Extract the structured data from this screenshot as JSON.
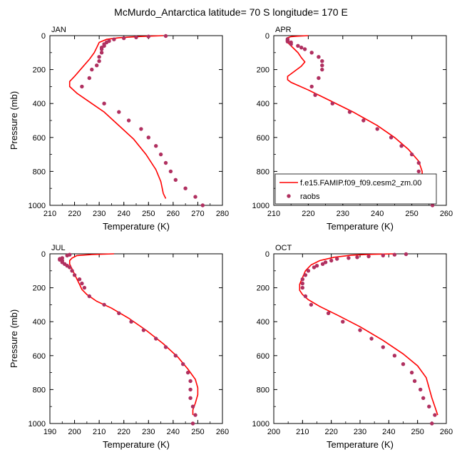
{
  "figure": {
    "title": "McMurdo_Antarctica  latitude= 70 S longitude= 170 E"
  },
  "legend": {
    "model_label": "f.e15.FAMIP.f09_f09.cesm2_zm.00",
    "obs_label": "raobs",
    "model_color": "#ff0000",
    "obs_color": "#b03060"
  },
  "chart_data": [
    {
      "type": "line",
      "panel": "JAN",
      "xlabel": "Temperature (K)",
      "ylabel": "Pressure (mb)",
      "xlim": [
        210,
        280
      ],
      "ylim": [
        1000,
        0
      ],
      "xticks": [
        210,
        220,
        230,
        240,
        250,
        260,
        270,
        280
      ],
      "yticks": [
        0,
        200,
        400,
        600,
        800,
        1000
      ],
      "series": [
        {
          "name": "f.e15.FAMIP.f09_f09.cesm2_zm.00",
          "kind": "line",
          "points": [
            [
              256,
              0
            ],
            [
              245,
              6
            ],
            [
              238,
              12
            ],
            [
              233,
              22
            ],
            [
              230,
              40
            ],
            [
              229,
              70
            ],
            [
              228,
              100
            ],
            [
              226,
              140
            ],
            [
              223,
              190
            ],
            [
              220,
              240
            ],
            [
              218,
              270
            ],
            [
              218,
              300
            ],
            [
              221,
              340
            ],
            [
              226,
              390
            ],
            [
              232,
              450
            ],
            [
              238,
              530
            ],
            [
              244,
              610
            ],
            [
              249,
              700
            ],
            [
              253,
              790
            ],
            [
              255,
              860
            ],
            [
              256,
              930
            ],
            [
              257,
              960
            ]
          ]
        },
        {
          "name": "raobs",
          "kind": "scatter",
          "points": [
            [
              257,
              2
            ],
            [
              250,
              5
            ],
            [
              245,
              10
            ],
            [
              240,
              15
            ],
            [
              236,
              22
            ],
            [
              234,
              32
            ],
            [
              233,
              40
            ],
            [
              232,
              50
            ],
            [
              232,
              60
            ],
            [
              231,
              70
            ],
            [
              231,
              80
            ],
            [
              231,
              100
            ],
            [
              230,
              125
            ],
            [
              230,
              150
            ],
            [
              229,
              175
            ],
            [
              227,
              200
            ],
            [
              226,
              250
            ],
            [
              223,
              300
            ],
            [
              232,
              400
            ],
            [
              238,
              450
            ],
            [
              242,
              500
            ],
            [
              247,
              550
            ],
            [
              250,
              600
            ],
            [
              253,
              650
            ],
            [
              255,
              700
            ],
            [
              257,
              750
            ],
            [
              259,
              800
            ],
            [
              261,
              850
            ],
            [
              265,
              900
            ],
            [
              269,
              950
            ],
            [
              272,
              1000
            ]
          ]
        }
      ]
    },
    {
      "type": "line",
      "panel": "APR",
      "xlabel": "Temperature (K)",
      "ylabel": "Pressure (mb)",
      "xlim": [
        210,
        260
      ],
      "ylim": [
        1000,
        0
      ],
      "xticks": [
        210,
        220,
        230,
        240,
        250,
        260
      ],
      "yticks": [
        0,
        200,
        400,
        600,
        800,
        1000
      ],
      "series": [
        {
          "name": "f.e15.FAMIP.f09_f09.cesm2_zm.00",
          "kind": "line",
          "points": [
            [
              220,
              0
            ],
            [
              217,
              3
            ],
            [
              215,
              6
            ],
            [
              214,
              12
            ],
            [
              214,
              25
            ],
            [
              214,
              40
            ],
            [
              215,
              60
            ],
            [
              216,
              80
            ],
            [
              217,
              100
            ],
            [
              218,
              130
            ],
            [
              219,
              155
            ],
            [
              218,
              180
            ],
            [
              216,
              210
            ],
            [
              214,
              240
            ],
            [
              214,
              260
            ],
            [
              215,
              275
            ],
            [
              220,
              320
            ],
            [
              226,
              380
            ],
            [
              233,
              450
            ],
            [
              240,
              530
            ],
            [
              245,
              600
            ],
            [
              249,
              670
            ],
            [
              252,
              740
            ],
            [
              253,
              800
            ],
            [
              253,
              870
            ],
            [
              254,
              930
            ],
            [
              256,
              975
            ]
          ]
        },
        {
          "name": "raobs",
          "kind": "scatter",
          "points": [
            [
              214,
              20
            ],
            [
              214,
              25
            ],
            [
              214,
              30
            ],
            [
              214,
              35
            ],
            [
              215,
              40
            ],
            [
              215,
              50
            ],
            [
              217,
              60
            ],
            [
              218,
              70
            ],
            [
              219,
              80
            ],
            [
              221,
              100
            ],
            [
              223,
              125
            ],
            [
              224,
              150
            ],
            [
              224,
              175
            ],
            [
              224,
              200
            ],
            [
              223,
              250
            ],
            [
              221,
              300
            ],
            [
              222,
              350
            ],
            [
              227,
              400
            ],
            [
              232,
              450
            ],
            [
              236,
              500
            ],
            [
              240,
              550
            ],
            [
              244,
              600
            ],
            [
              247,
              650
            ],
            [
              250,
              700
            ],
            [
              252,
              750
            ],
            [
              252,
              800
            ],
            [
              253,
              850
            ],
            [
              253,
              900
            ],
            [
              255,
              950
            ],
            [
              256,
              1000
            ]
          ]
        }
      ]
    },
    {
      "type": "line",
      "panel": "JUL",
      "xlabel": "Temperature (K)",
      "ylabel": "Pressure (mb)",
      "xlim": [
        190,
        260
      ],
      "ylim": [
        1000,
        0
      ],
      "xticks": [
        190,
        200,
        210,
        220,
        230,
        240,
        250,
        260
      ],
      "yticks": [
        0,
        200,
        400,
        600,
        800,
        1000
      ],
      "series": [
        {
          "name": "f.e15.FAMIP.f09_f09.cesm2_zm.00",
          "kind": "line",
          "points": [
            [
              216,
              0
            ],
            [
              207,
              4
            ],
            [
              201,
              10
            ],
            [
              199,
              25
            ],
            [
              198,
              40
            ],
            [
              198,
              60
            ],
            [
              199,
              90
            ],
            [
              200,
              120
            ],
            [
              201,
              150
            ],
            [
              202,
              180
            ],
            [
              203,
              210
            ],
            [
              205,
              240
            ],
            [
              209,
              280
            ],
            [
              215,
              320
            ],
            [
              222,
              380
            ],
            [
              229,
              450
            ],
            [
              236,
              530
            ],
            [
              242,
              610
            ],
            [
              246,
              680
            ],
            [
              249,
              740
            ],
            [
              250,
              790
            ],
            [
              250,
              830
            ],
            [
              249,
              880
            ],
            [
              248,
              920
            ],
            [
              248,
              950
            ]
          ]
        },
        {
          "name": "raobs",
          "kind": "scatter",
          "points": [
            [
              198,
              5
            ],
            [
              197,
              10
            ],
            [
              195,
              25
            ],
            [
              194,
              30
            ],
            [
              194,
              35
            ],
            [
              195,
              40
            ],
            [
              195,
              50
            ],
            [
              196,
              60
            ],
            [
              197,
              70
            ],
            [
              198,
              80
            ],
            [
              199,
              100
            ],
            [
              200,
              125
            ],
            [
              202,
              150
            ],
            [
              203,
              175
            ],
            [
              204,
              200
            ],
            [
              206,
              250
            ],
            [
              212,
              300
            ],
            [
              218,
              350
            ],
            [
              223,
              400
            ],
            [
              228,
              450
            ],
            [
              233,
              500
            ],
            [
              237,
              550
            ],
            [
              241,
              600
            ],
            [
              244,
              650
            ],
            [
              246,
              700
            ],
            [
              247,
              750
            ],
            [
              247,
              800
            ],
            [
              247,
              850
            ],
            [
              248,
              900
            ],
            [
              249,
              950
            ],
            [
              248,
              1000
            ]
          ]
        }
      ]
    },
    {
      "type": "line",
      "panel": "OCT",
      "xlabel": "Temperature (K)",
      "ylabel": "Pressure (mb)",
      "xlim": [
        200,
        260
      ],
      "ylim": [
        1000,
        0
      ],
      "xticks": [
        200,
        210,
        220,
        230,
        240,
        250,
        260
      ],
      "yticks": [
        0,
        200,
        400,
        600,
        800,
        1000
      ],
      "series": [
        {
          "name": "f.e15.FAMIP.f09_f09.cesm2_zm.00",
          "kind": "line",
          "points": [
            [
              242,
              0
            ],
            [
              234,
              3
            ],
            [
              227,
              8
            ],
            [
              221,
              20
            ],
            [
              216,
              40
            ],
            [
              213,
              65
            ],
            [
              211,
              100
            ],
            [
              210,
              140
            ],
            [
              209,
              180
            ],
            [
              209,
              215
            ],
            [
              210,
              240
            ],
            [
              212,
              270
            ],
            [
              216,
              310
            ],
            [
              222,
              360
            ],
            [
              230,
              430
            ],
            [
              238,
              510
            ],
            [
              245,
              590
            ],
            [
              250,
              660
            ],
            [
              253,
              730
            ],
            [
              254,
              790
            ],
            [
              255,
              850
            ],
            [
              256,
              900
            ],
            [
              257,
              950
            ]
          ]
        },
        {
          "name": "raobs",
          "kind": "scatter",
          "points": [
            [
              246,
              2
            ],
            [
              242,
              5
            ],
            [
              238,
              10
            ],
            [
              233,
              15
            ],
            [
              229,
              20
            ],
            [
              226,
              25
            ],
            [
              222,
              30
            ],
            [
              220,
              40
            ],
            [
              218,
              50
            ],
            [
              217,
              60
            ],
            [
              215,
              70
            ],
            [
              214,
              80
            ],
            [
              212,
              100
            ],
            [
              211,
              125
            ],
            [
              210,
              150
            ],
            [
              210,
              175
            ],
            [
              210,
              200
            ],
            [
              211,
              250
            ],
            [
              213,
              300
            ],
            [
              219,
              350
            ],
            [
              224,
              400
            ],
            [
              230,
              450
            ],
            [
              234,
              500
            ],
            [
              238,
              550
            ],
            [
              242,
              600
            ],
            [
              245,
              650
            ],
            [
              248,
              700
            ],
            [
              249,
              750
            ],
            [
              251,
              800
            ],
            [
              252,
              850
            ],
            [
              254,
              900
            ],
            [
              256,
              950
            ],
            [
              255,
              1000
            ]
          ]
        }
      ]
    }
  ]
}
